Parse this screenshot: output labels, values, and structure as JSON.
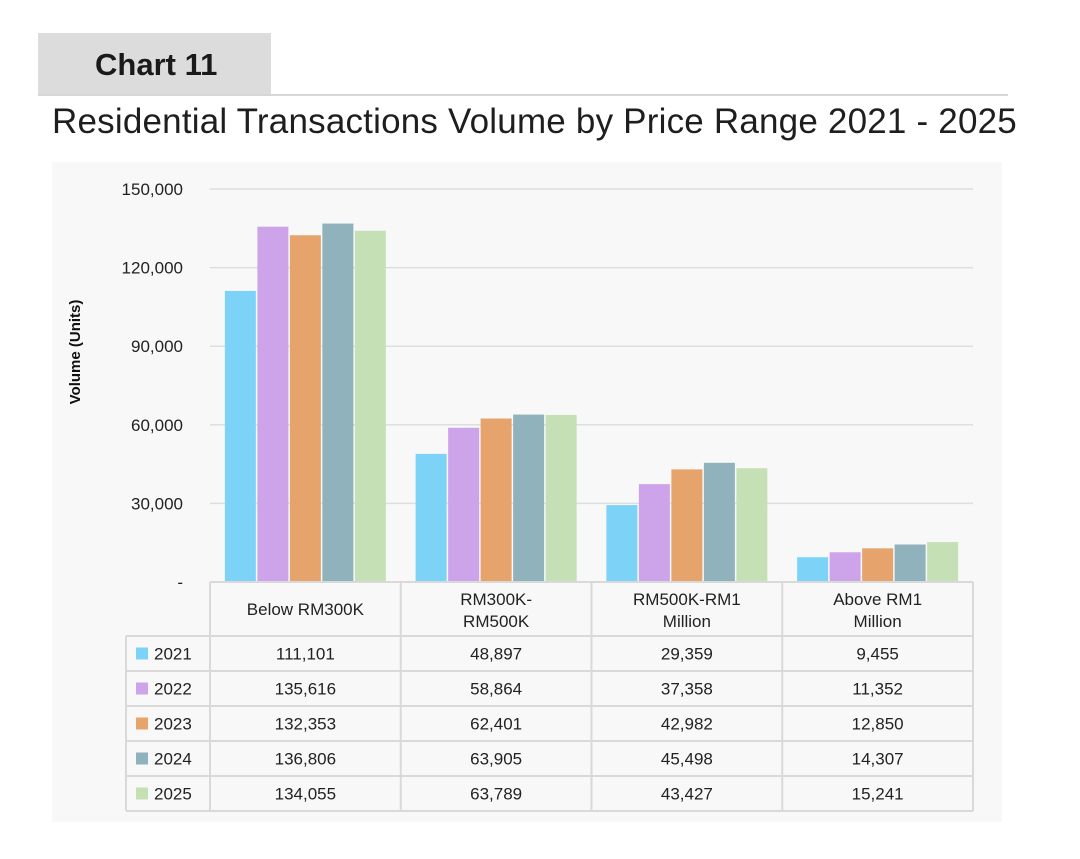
{
  "header": {
    "tag": "Chart 11",
    "title": "Residential Transactions Volume by Price Range 2021 - 2025"
  },
  "colors": {
    "2021": "#7dd3f7",
    "2022": "#cda4ea",
    "2023": "#e6a46c",
    "2024": "#8fb2bd",
    "2025": "#c6e0b5",
    "grid": "#dedede",
    "table_border": "#d9d9d9"
  },
  "chart_data": {
    "type": "bar",
    "title": "Residential Transactions Volume by Price Range 2021 - 2025",
    "xlabel": "",
    "ylabel": "Volume (Units)",
    "ylim": [
      0,
      150000
    ],
    "yticks": [
      0,
      30000,
      60000,
      90000,
      120000,
      150000
    ],
    "ytick_labels": [
      "-",
      "30,000",
      "60,000",
      "90,000",
      "120,000",
      "150,000"
    ],
    "grid": true,
    "categories": [
      [
        "Below RM300K"
      ],
      [
        "RM300K-",
        "RM500K"
      ],
      [
        "RM500K-RM1",
        "Million"
      ],
      [
        "Above RM1",
        "Million"
      ]
    ],
    "series": [
      {
        "name": "2021",
        "values": [
          111101,
          48897,
          29359,
          9455
        ],
        "labels": [
          "111,101",
          "48,897",
          "29,359",
          "9,455"
        ]
      },
      {
        "name": "2022",
        "values": [
          135616,
          58864,
          37358,
          11352
        ],
        "labels": [
          "135,616",
          "58,864",
          "37,358",
          "11,352"
        ]
      },
      {
        "name": "2023",
        "values": [
          132353,
          62401,
          42982,
          12850
        ],
        "labels": [
          "132,353",
          "62,401",
          "42,982",
          "12,850"
        ]
      },
      {
        "name": "2024",
        "values": [
          136806,
          63905,
          45498,
          14307
        ],
        "labels": [
          "136,806",
          "63,905",
          "45,498",
          "14,307"
        ]
      },
      {
        "name": "2025",
        "values": [
          134055,
          63789,
          43427,
          15241
        ],
        "labels": [
          "134,055",
          "63,789",
          "43,427",
          "15,241"
        ]
      }
    ]
  }
}
